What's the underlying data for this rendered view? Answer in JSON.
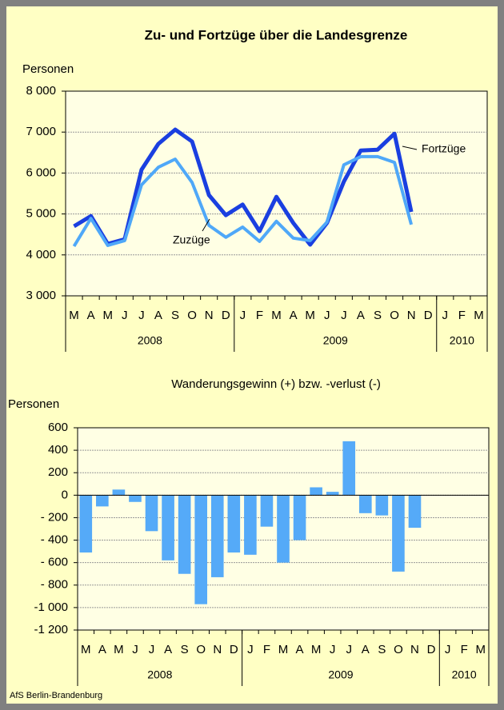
{
  "chart_data": [
    {
      "type": "line",
      "title": "Zu- und Fortzüge über die Landesgrenze",
      "y_label": "Personen",
      "categories": [
        "M",
        "A",
        "M",
        "J",
        "J",
        "A",
        "S",
        "O",
        "N",
        "D",
        "J",
        "F",
        "M",
        "A",
        "M",
        "J",
        "J",
        "A",
        "S",
        "O",
        "N",
        "D",
        "J",
        "F",
        "M"
      ],
      "x_groups": [
        {
          "label": "2008",
          "span": 10
        },
        {
          "label": "2009",
          "span": 12
        },
        {
          "label": "2010",
          "span": 3
        }
      ],
      "series": [
        {
          "name": "Fortzüge",
          "color": "#1a3fe0",
          "values": [
            4700,
            4950,
            4270,
            4380,
            6080,
            6710,
            7060,
            6770,
            5460,
            4970,
            5230,
            4580,
            5420,
            4780,
            4250,
            4780,
            5790,
            6550,
            6570,
            6960,
            5050,
            null,
            null,
            null,
            null
          ]
        },
        {
          "name": "Zuzüge",
          "color": "#4fa8f8",
          "values": [
            4210,
            4890,
            4230,
            4350,
            5710,
            6140,
            6340,
            5770,
            4720,
            4430,
            4680,
            4330,
            4820,
            4410,
            4350,
            4800,
            6200,
            6400,
            6400,
            6260,
            4740,
            null,
            null,
            null,
            null
          ]
        }
      ],
      "ylim": [
        3000,
        8000
      ],
      "yticks": [
        {
          "value": 3000,
          "label": "3 000"
        },
        {
          "value": 4000,
          "label": "4 000"
        },
        {
          "value": 5000,
          "label": "5 000"
        },
        {
          "value": 6000,
          "label": "6 000"
        },
        {
          "value": 7000,
          "label": "7 000"
        },
        {
          "value": 8000,
          "label": "8 000"
        }
      ],
      "grid": true
    },
    {
      "type": "bar",
      "title": "Wanderungsgewinn (+) bzw. -verlust (-)",
      "y_label": "Personen",
      "categories": [
        "M",
        "A",
        "M",
        "J",
        "J",
        "A",
        "S",
        "O",
        "N",
        "D",
        "J",
        "F",
        "M",
        "A",
        "M",
        "J",
        "J",
        "A",
        "S",
        "O",
        "N",
        "D",
        "J",
        "F",
        "M"
      ],
      "x_groups": [
        {
          "label": "2008",
          "span": 10
        },
        {
          "label": "2009",
          "span": 12
        },
        {
          "label": "2010",
          "span": 3
        }
      ],
      "values": [
        -510,
        -100,
        50,
        -60,
        -320,
        -580,
        -700,
        -970,
        -730,
        -510,
        -530,
        -280,
        -600,
        -400,
        70,
        30,
        480,
        -160,
        -180,
        -680,
        -290,
        null,
        null,
        null,
        null
      ],
      "color": "#55aaf8",
      "ylim": [
        -1200,
        600
      ],
      "yticks": [
        {
          "value": -1200,
          "label": "-1 200"
        },
        {
          "value": -1000,
          "label": "-1 000"
        },
        {
          "value": -800,
          "label": "- 800"
        },
        {
          "value": -600,
          "label": "- 600"
        },
        {
          "value": -400,
          "label": "- 400"
        },
        {
          "value": -200,
          "label": "- 200"
        },
        0,
        200,
        400,
        600
      ],
      "grid": true
    }
  ],
  "footer": "AfS Berlin-Brandenburg"
}
